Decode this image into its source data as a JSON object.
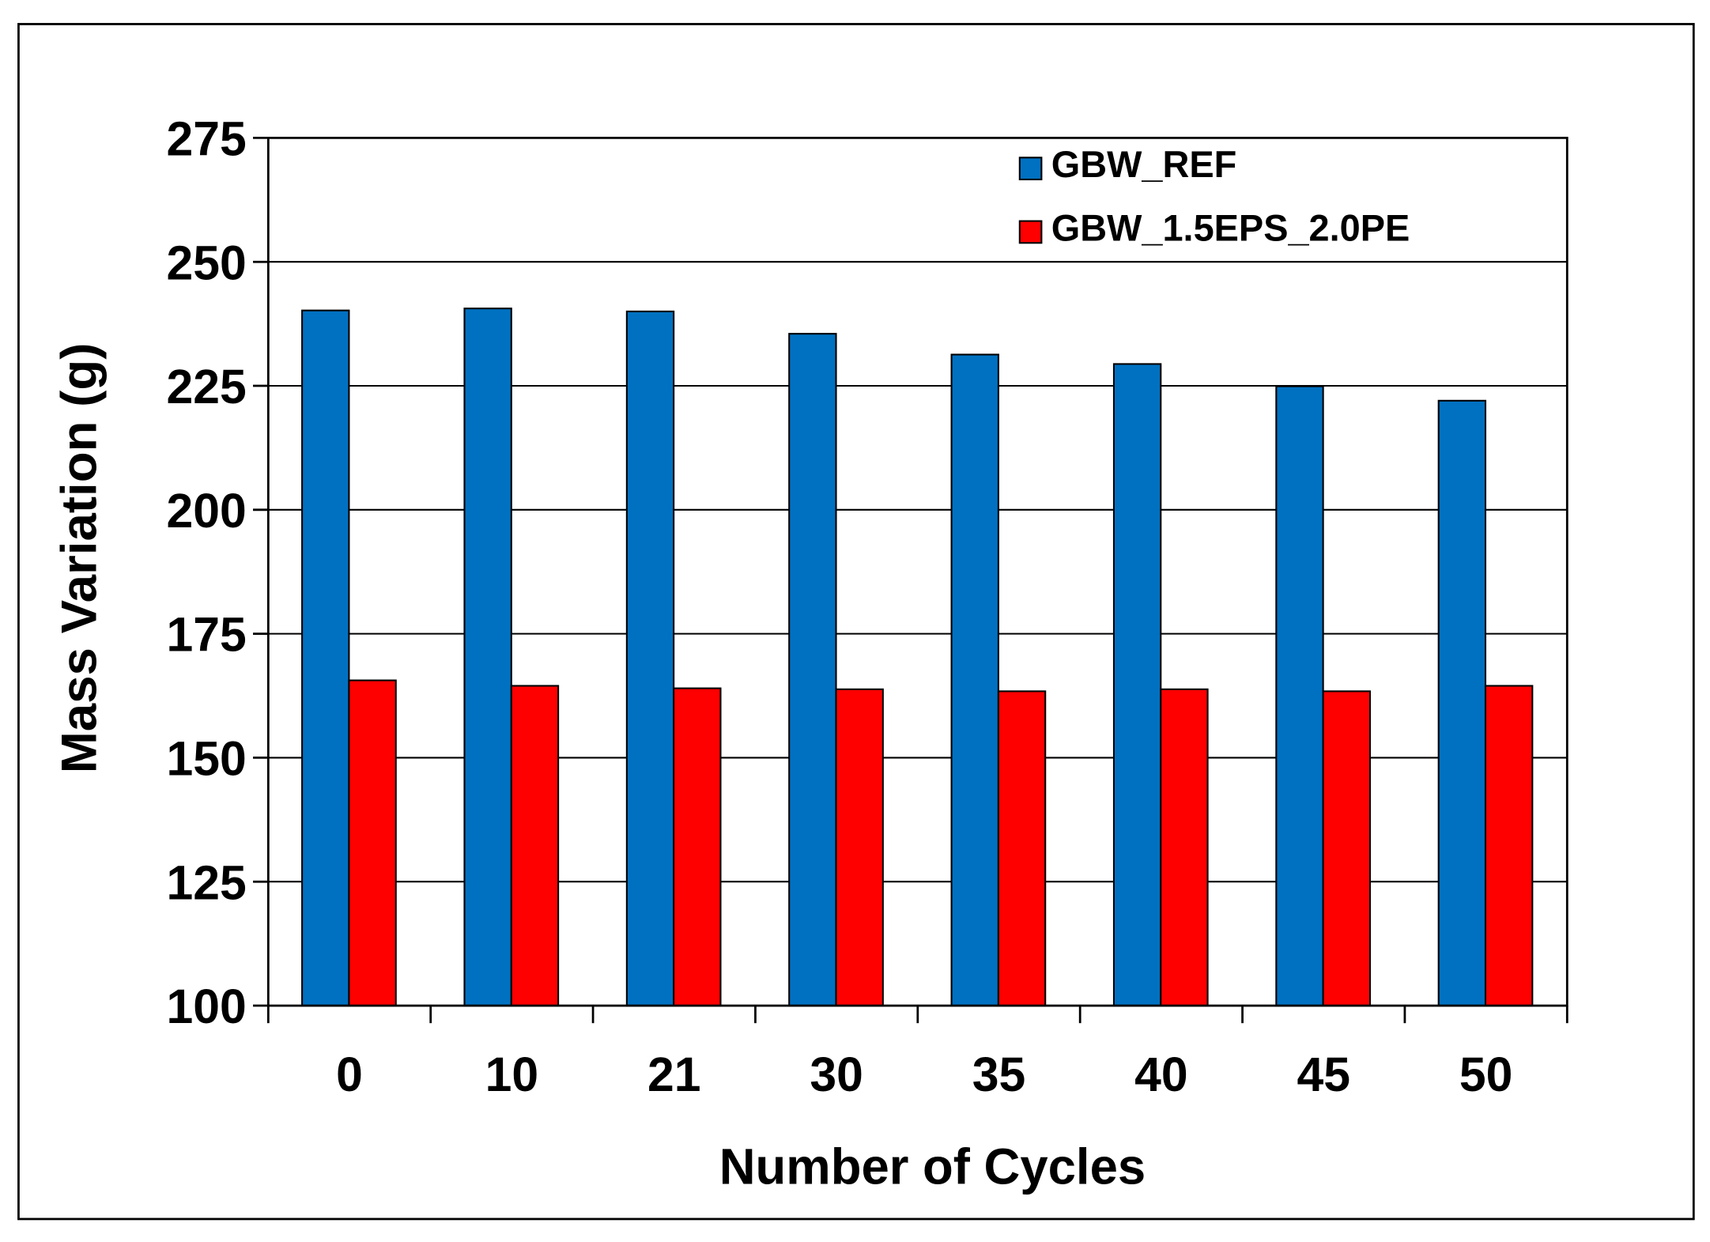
{
  "chart_data": {
    "type": "bar",
    "title": "",
    "xlabel": "Number of Cycles",
    "ylabel": "Mass Variation (g)",
    "ylim": [
      100,
      275
    ],
    "yticks": [
      100,
      125,
      150,
      175,
      200,
      225,
      250,
      275
    ],
    "grid": true,
    "legend_position": "top-right",
    "categories": [
      "0",
      "10",
      "21",
      "30",
      "35",
      "40",
      "45",
      "50"
    ],
    "series": [
      {
        "name": "GBW_REF",
        "color": "#0070C0",
        "values": [
          240.2,
          240.6,
          240.0,
          235.5,
          231.3,
          229.4,
          224.9,
          222.0
        ]
      },
      {
        "name": "GBW_1.5EPS_2.0PE",
        "color": "#FF0000",
        "values": [
          165.6,
          164.5,
          164.0,
          163.8,
          163.4,
          163.8,
          163.4,
          164.5
        ]
      }
    ]
  }
}
